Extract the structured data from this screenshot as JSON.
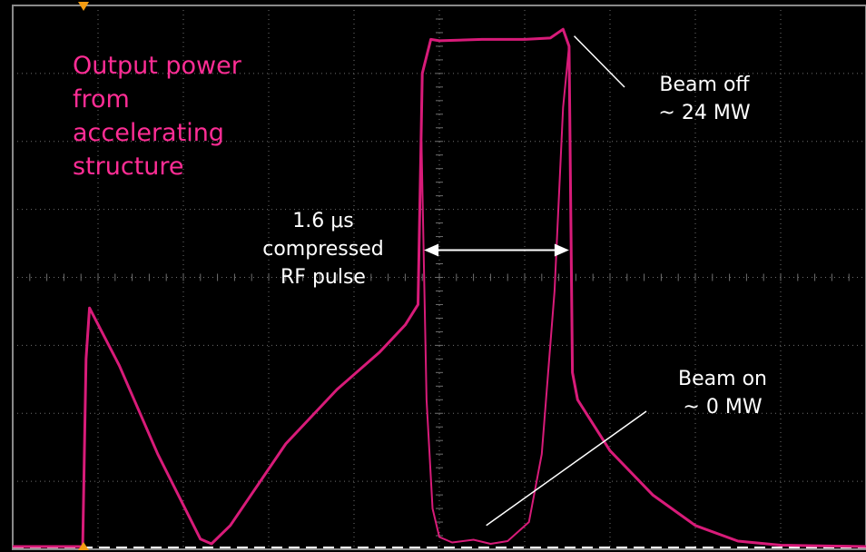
{
  "colors": {
    "background": "#000000",
    "frame": "#8a8a8a",
    "grid": "#6f6f6f",
    "trace": "#d81b79",
    "title_text": "#ff2d95",
    "annotation_text": "#ffffff",
    "marker": "#f39c12"
  },
  "chart_data": {
    "type": "line",
    "title_lines": [
      "Output power",
      "from",
      "accelerating",
      "structure"
    ],
    "xlim": [
      0,
      10
    ],
    "ylim": [
      0,
      8
    ],
    "grid": true,
    "baseline_y": 0.04,
    "series": [
      {
        "key": "beam_off",
        "x": [
          0,
          0.82,
          0.86,
          0.9,
          1.25,
          1.7,
          2.2,
          2.33,
          2.55,
          3.2,
          3.8,
          4.3,
          4.6,
          4.75,
          4.8,
          4.9,
          5.0,
          5.5,
          6.0,
          6.3,
          6.45,
          6.52,
          6.56,
          6.62,
          7.0,
          7.5,
          8.0,
          8.5,
          9.0,
          10
        ],
        "y": [
          0.04,
          0.04,
          2.8,
          3.55,
          2.7,
          1.4,
          0.15,
          0.08,
          0.35,
          1.55,
          2.35,
          2.9,
          3.3,
          3.6,
          7.0,
          7.5,
          7.48,
          7.5,
          7.5,
          7.52,
          7.65,
          7.4,
          2.6,
          2.2,
          1.45,
          0.8,
          0.35,
          0.12,
          0.06,
          0.04
        ]
      },
      {
        "key": "beam_on",
        "x": [
          4.75,
          4.79,
          4.85,
          4.92,
          5.0,
          5.15,
          5.4,
          5.6,
          5.8,
          6.05,
          6.2,
          6.35,
          6.45,
          6.52
        ],
        "y": [
          3.6,
          6.0,
          2.2,
          0.6,
          0.18,
          0.1,
          0.14,
          0.08,
          0.12,
          0.4,
          1.4,
          3.8,
          6.5,
          7.4
        ]
      }
    ],
    "annotations": {
      "pulse": {
        "lines": [
          "1.6 μs",
          "compressed",
          "RF pulse"
        ],
        "x_from": 4.82,
        "x_to": 6.52,
        "y": 4.4
      },
      "beam_off": {
        "lines": [
          "Beam off",
          "~ 24 MW"
        ],
        "pointer_x": 6.58,
        "pointer_y": 7.55
      },
      "beam_on": {
        "lines": [
          "Beam on",
          "~ 0 MW"
        ],
        "pointer_x": 5.55,
        "pointer_y": 0.35
      }
    }
  }
}
